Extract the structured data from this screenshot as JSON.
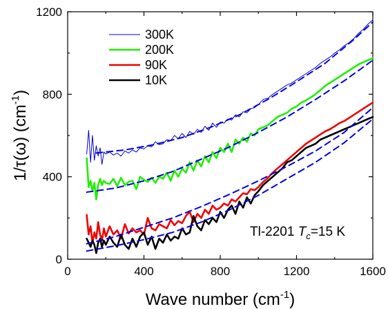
{
  "chart_data": {
    "type": "line",
    "title": "",
    "xlabel": "Wave number (cm",
    "xlabel_sup": "-1",
    "xlabel_end": ")",
    "ylabel": "1/τ(ω) (cm",
    "ylabel_sup": "-1",
    "ylabel_end": ")",
    "xlim": [
      0,
      1600
    ],
    "ylim": [
      0,
      1200
    ],
    "xticks": [
      0,
      400,
      800,
      1200,
      1600
    ],
    "yticks": [
      0,
      400,
      800,
      1200
    ],
    "grid": false,
    "legend_position": "top-left",
    "annotation": {
      "prefix": "Tl-2201 ",
      "var": "T",
      "sub": "c",
      "suffix": "=15 K"
    },
    "series": [
      {
        "name": "300K",
        "color": "#0000cc",
        "stroke": 1,
        "x": [
          100,
          110,
          120,
          130,
          140,
          150,
          160,
          170,
          180,
          190,
          200,
          220,
          240,
          260,
          280,
          300,
          320,
          340,
          360,
          380,
          400,
          420,
          440,
          460,
          480,
          500,
          520,
          540,
          560,
          580,
          600,
          620,
          640,
          660,
          680,
          700,
          720,
          740,
          760,
          780,
          800,
          820,
          840,
          860,
          880,
          900,
          920,
          940,
          960,
          980,
          1000,
          1025,
          1050,
          1075,
          1100,
          1125,
          1150,
          1175,
          1200,
          1225,
          1250,
          1275,
          1300,
          1325,
          1350,
          1375,
          1400,
          1425,
          1450,
          1475,
          1500,
          1525,
          1550,
          1575,
          1600
        ],
        "y": [
          510,
          625,
          470,
          600,
          480,
          550,
          500,
          540,
          460,
          520,
          510,
          520,
          505,
          515,
          500,
          525,
          515,
          530,
          520,
          540,
          535,
          550,
          545,
          570,
          555,
          560,
          580,
          575,
          600,
          585,
          610,
          590,
          620,
          605,
          630,
          615,
          645,
          625,
          660,
          640,
          665,
          660,
          680,
          675,
          700,
          690,
          715,
          710,
          730,
          735,
          750,
          775,
          780,
          800,
          815,
          830,
          845,
          855,
          870,
          885,
          900,
          915,
          930,
          950,
          965,
          980,
          1000,
          1015,
          1035,
          1050,
          1070,
          1095,
          1115,
          1140,
          1160
        ]
      },
      {
        "name": "200K",
        "color": "#22ee00",
        "stroke": 2.6,
        "x": [
          100,
          110,
          120,
          130,
          140,
          150,
          160,
          170,
          180,
          190,
          200,
          220,
          240,
          260,
          280,
          300,
          320,
          340,
          360,
          380,
          400,
          420,
          440,
          460,
          480,
          500,
          520,
          540,
          560,
          580,
          600,
          620,
          640,
          660,
          680,
          700,
          720,
          740,
          760,
          780,
          800,
          820,
          840,
          860,
          880,
          900,
          920,
          940,
          960,
          980,
          1000,
          1025,
          1050,
          1075,
          1100,
          1125,
          1150,
          1175,
          1200,
          1225,
          1250,
          1275,
          1300,
          1325,
          1350,
          1375,
          1400,
          1425,
          1450,
          1475,
          1500,
          1525,
          1550,
          1575,
          1600
        ],
        "y": [
          490,
          350,
          380,
          330,
          370,
          290,
          360,
          390,
          360,
          380,
          370,
          365,
          390,
          355,
          395,
          360,
          375,
          380,
          340,
          400,
          385,
          375,
          395,
          370,
          400,
          390,
          420,
          380,
          430,
          400,
          440,
          420,
          470,
          430,
          480,
          450,
          500,
          470,
          520,
          490,
          540,
          520,
          560,
          520,
          580,
          560,
          590,
          570,
          610,
          600,
          630,
          640,
          650,
          670,
          690,
          700,
          710,
          730,
          740,
          760,
          770,
          785,
          800,
          820,
          840,
          855,
          870,
          885,
          900,
          915,
          930,
          945,
          955,
          965,
          975
        ]
      },
      {
        "name": "90K",
        "color": "#ee0000",
        "stroke": 2.6,
        "x": [
          100,
          110,
          120,
          130,
          140,
          150,
          160,
          170,
          180,
          190,
          200,
          220,
          240,
          260,
          280,
          300,
          320,
          340,
          360,
          380,
          400,
          420,
          440,
          460,
          480,
          500,
          520,
          540,
          560,
          580,
          600,
          620,
          640,
          660,
          680,
          700,
          720,
          740,
          760,
          780,
          800,
          820,
          840,
          860,
          880,
          900,
          920,
          940,
          960,
          980,
          1000,
          1025,
          1050,
          1075,
          1100,
          1125,
          1150,
          1175,
          1200,
          1225,
          1250,
          1275,
          1300,
          1325,
          1350,
          1375,
          1400,
          1425,
          1450,
          1475,
          1500,
          1525,
          1550,
          1575,
          1600
        ],
        "y": [
          215,
          120,
          160,
          80,
          130,
          100,
          180,
          120,
          90,
          150,
          110,
          160,
          120,
          140,
          100,
          170,
          125,
          150,
          130,
          140,
          120,
          200,
          150,
          140,
          170,
          160,
          150,
          190,
          165,
          185,
          175,
          210,
          230,
          180,
          220,
          200,
          240,
          220,
          260,
          240,
          250,
          270,
          260,
          290,
          280,
          300,
          320,
          315,
          340,
          335,
          350,
          375,
          395,
          420,
          440,
          460,
          480,
          500,
          520,
          540,
          560,
          575,
          590,
          605,
          620,
          630,
          645,
          660,
          670,
          685,
          700,
          715,
          730,
          745,
          760
        ]
      },
      {
        "name": "10K",
        "color": "#000000",
        "stroke": 2.6,
        "x": [
          100,
          110,
          120,
          130,
          140,
          150,
          160,
          170,
          180,
          190,
          200,
          220,
          240,
          260,
          280,
          300,
          320,
          340,
          360,
          380,
          400,
          420,
          440,
          460,
          480,
          500,
          520,
          540,
          560,
          580,
          600,
          620,
          640,
          660,
          680,
          700,
          720,
          740,
          760,
          780,
          800,
          820,
          840,
          860,
          880,
          900,
          920,
          940,
          960,
          980,
          1000,
          1025,
          1050,
          1075,
          1100,
          1125,
          1150,
          1175,
          1200,
          1225,
          1250,
          1275,
          1300,
          1325,
          1350,
          1375,
          1400,
          1425,
          1450,
          1475,
          1500,
          1525,
          1550,
          1575,
          1600
        ],
        "y": [
          100,
          80,
          60,
          90,
          70,
          30,
          80,
          100,
          60,
          90,
          70,
          110,
          80,
          60,
          120,
          70,
          50,
          100,
          60,
          110,
          130,
          70,
          110,
          50,
          100,
          80,
          120,
          90,
          110,
          100,
          150,
          120,
          130,
          210,
          160,
          140,
          190,
          170,
          200,
          180,
          230,
          200,
          240,
          260,
          220,
          280,
          250,
          300,
          270,
          310,
          330,
          360,
          380,
          400,
          420,
          440,
          470,
          480,
          500,
          520,
          540,
          550,
          560,
          580,
          590,
          600,
          610,
          620,
          630,
          640,
          650,
          660,
          670,
          680,
          690
        ]
      },
      {
        "name": "",
        "color": "#0000dd",
        "stroke": 2,
        "dashed": true,
        "x": [
          150,
          300,
          450,
          600,
          750,
          900,
          1050,
          1200,
          1350,
          1500,
          1600
        ],
        "y": [
          515,
          530,
          555,
          590,
          640,
          700,
          775,
          860,
          950,
          1065,
          1150
        ]
      },
      {
        "name": "",
        "color": "#0000dd",
        "stroke": 2,
        "dashed": true,
        "x": [
          100,
          250,
          400,
          550,
          700,
          850,
          1000,
          1150,
          1300,
          1450,
          1600
        ],
        "y": [
          325,
          345,
          380,
          425,
          485,
          545,
          615,
          690,
          775,
          865,
          965
        ]
      },
      {
        "name": "",
        "color": "#0000dd",
        "stroke": 2,
        "dashed": true,
        "x": [
          100,
          250,
          400,
          550,
          700,
          850,
          1000,
          1150,
          1300,
          1450,
          1600
        ],
        "y": [
          75,
          110,
          155,
          200,
          255,
          315,
          380,
          450,
          525,
          615,
          735
        ]
      },
      {
        "name": "",
        "color": "#0000dd",
        "stroke": 2,
        "dashed": true,
        "x": [
          100,
          250,
          400,
          550,
          700,
          850,
          1000,
          1150,
          1300,
          1450,
          1600
        ],
        "y": [
          40,
          65,
          95,
          130,
          180,
          240,
          310,
          390,
          470,
          565,
          680
        ]
      }
    ]
  }
}
